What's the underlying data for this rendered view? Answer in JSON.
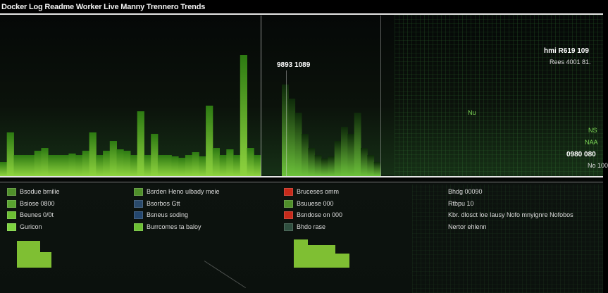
{
  "header": {
    "title": "Docker Log Readme Worker Live Manny Trennero Trends"
  },
  "colors": {
    "bar": "#6fbf2f",
    "bar_dark": "#2c5a14",
    "accent_red": "#c62a1a",
    "accent_blue": "#2a4a6b",
    "teal": "#2f4f3f"
  },
  "chart_data": {
    "type": "bar",
    "left_series": [
      20,
      62,
      30,
      30,
      30,
      36,
      40,
      30,
      30,
      30,
      32,
      30,
      36,
      62,
      30,
      36,
      50,
      38,
      36,
      30,
      92,
      30,
      60,
      30,
      30,
      28,
      26,
      30,
      34,
      28,
      100,
      40,
      30,
      38,
      30,
      172,
      40,
      30
    ],
    "mid_series": [
      130,
      110,
      90,
      60,
      40,
      30,
      25,
      28,
      50,
      70,
      60,
      90,
      40,
      30,
      20
    ],
    "annotations": {
      "peak_label": "9893 1089",
      "top_right_1": "hmi R619 109",
      "top_right_2": "Rees 4001 81.",
      "mid_right": "Nu",
      "right_1": "NS",
      "right_2": "NAA",
      "right_3": "0980 080",
      "right_4": "No 100"
    }
  },
  "legend": {
    "col1": [
      "Bsodue bmilie",
      "Bsiose 0800",
      "Beunes 0/0t",
      "Guricon"
    ],
    "col2": [
      "Bsrden Heno ulbady meie",
      "Bsorbos Gtt",
      "Bsneus soding",
      "Burrcomes ta baloy"
    ],
    "col3": [
      "Bruceses omm",
      "Bsuuese 000",
      "Bsndose on 000",
      "Bhdo rase"
    ],
    "col4": [
      "Bhdg 00090",
      "Rtbpu 10",
      "Kbr. dlosct loe Iausy Nofo mnyignre Nofobos",
      "Nertor ehlenn"
    ]
  },
  "mini_charts": {
    "left": [
      38,
      38,
      22
    ],
    "right": [
      40,
      32,
      32,
      20
    ]
  }
}
